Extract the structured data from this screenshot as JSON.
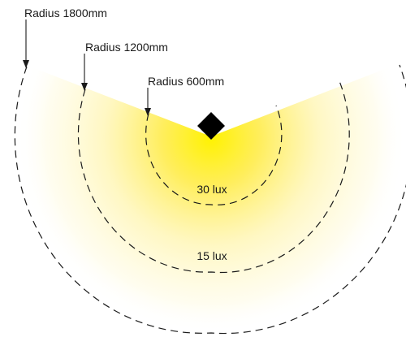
{
  "radius_labels": {
    "outer": "Radius 1800mm",
    "middle": "Radius 1200mm",
    "inner": "Radius 600mm"
  },
  "lux_labels": {
    "inner": "30 lux",
    "middle": "15 lux"
  },
  "colors": {
    "light_core": "#fff200",
    "light_mid": "#fff6a0",
    "light_edge": "#ffffff",
    "outline": "#1a1a1a",
    "fixture": "#000000"
  },
  "icons": {
    "fixture": "light-fixture-icon"
  }
}
